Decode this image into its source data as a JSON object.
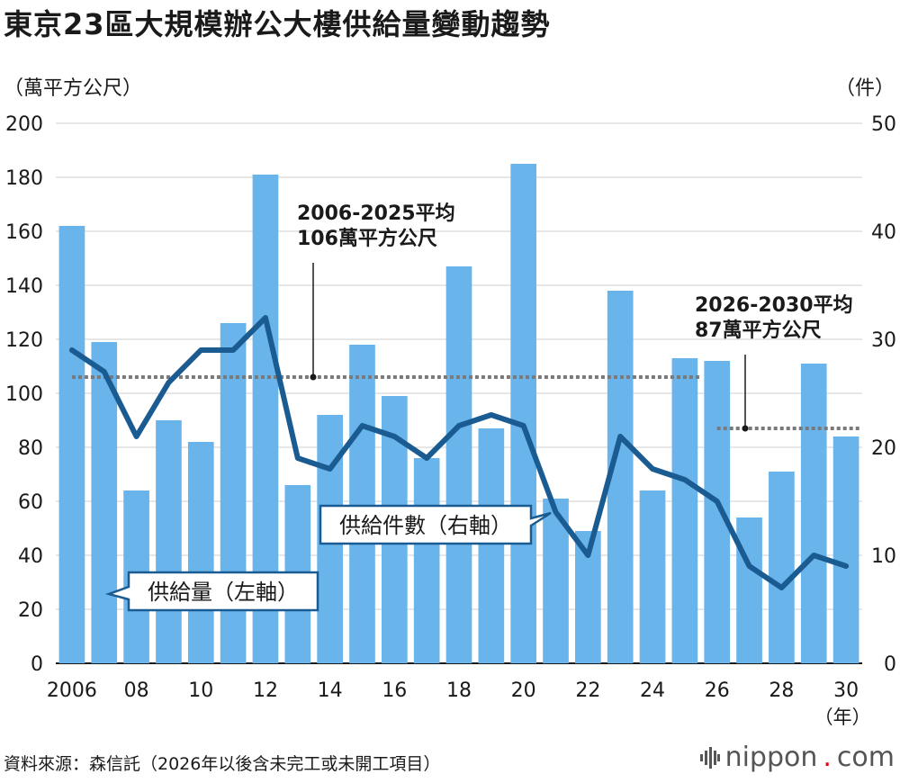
{
  "title": "東京23區大規模辦公大樓供給量變動趨勢",
  "left_unit": "（萬平方公尺）",
  "right_unit": "（件）",
  "source": "資料來源：森信託（2026年以後含未完工或未開工項目）",
  "brand": {
    "name": "nippon",
    "dot": ".",
    "suffix": "com",
    "icon": "bar-wave-icon"
  },
  "chart_data": {
    "type": "bar",
    "categories": [
      "2006",
      "2007",
      "2008",
      "2009",
      "2010",
      "2011",
      "2012",
      "2013",
      "2014",
      "2015",
      "2016",
      "2017",
      "2018",
      "2019",
      "2020",
      "2021",
      "2022",
      "2023",
      "2024",
      "2025",
      "2026",
      "2027",
      "2028",
      "2029",
      "2030"
    ],
    "x_tick_labels": [
      "2006",
      "08",
      "10",
      "12",
      "14",
      "16",
      "18",
      "20",
      "22",
      "24",
      "26",
      "28",
      "30"
    ],
    "x_tick_categories": [
      "2006",
      "2008",
      "2010",
      "2012",
      "2014",
      "2016",
      "2018",
      "2020",
      "2022",
      "2024",
      "2026",
      "2028",
      "2030"
    ],
    "x_unit_label": "（年）",
    "left_axis": {
      "ylim": [
        0,
        200
      ],
      "ticks": [
        "0",
        "20",
        "40",
        "60",
        "80",
        "100",
        "120",
        "140",
        "160",
        "180",
        "200"
      ]
    },
    "right_axis": {
      "ylim": [
        0,
        50
      ],
      "ticks": [
        "0",
        "10",
        "20",
        "30",
        "40",
        "50"
      ]
    },
    "grid": true,
    "series": [
      {
        "name": "供給量（左軸）",
        "type": "bar",
        "axis": "left",
        "color": "#6ab4ec",
        "values": [
          162,
          119,
          64,
          90,
          82,
          126,
          181,
          66,
          92,
          118,
          99,
          76,
          147,
          87,
          185,
          61,
          49,
          138,
          64,
          113,
          112,
          54,
          71,
          111,
          84
        ]
      },
      {
        "name": "供給件數（右軸）",
        "type": "line",
        "axis": "right",
        "color": "#1a5b92",
        "values": [
          29,
          27,
          21,
          26,
          29,
          29,
          32,
          19,
          18,
          22,
          21,
          19,
          22,
          23,
          22,
          14,
          10,
          21,
          18,
          17,
          15,
          9,
          7,
          10,
          9
        ]
      }
    ],
    "annotations": [
      {
        "lines": [
          "2006-2025平均",
          "106萬平方公尺"
        ],
        "value": 106,
        "from": "2006",
        "to": "2025"
      },
      {
        "lines": [
          "2026-2030平均",
          "87萬平方公尺"
        ],
        "value": 87,
        "from": "2026",
        "to": "2030"
      }
    ]
  }
}
